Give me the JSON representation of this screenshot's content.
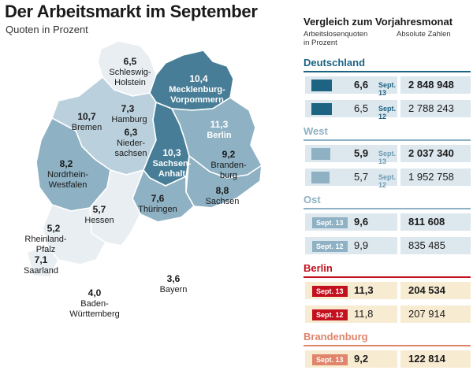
{
  "header": {
    "title": "Der Arbeitsmarkt im September",
    "subtitle": "Quoten in Prozent"
  },
  "chart_data": [
    {
      "type": "map",
      "regions": [
        {
          "id": "sh",
          "name": "Schleswig-Holstein",
          "label_lines": [
            "Schleswig-",
            "Holstein"
          ],
          "value": "6,5",
          "color": "#e8eef2"
        },
        {
          "id": "mv",
          "name": "Mecklenburg-Vorpommern",
          "label_lines": [
            "Mecklenburg-",
            "Vorpommern"
          ],
          "value": "10,4",
          "color": "#477d96"
        },
        {
          "id": "hh",
          "name": "Hamburg",
          "label_lines": [
            "Hamburg"
          ],
          "value": "7,3",
          "color": "#e8eef2"
        },
        {
          "id": "hb",
          "name": "Bremen",
          "label_lines": [
            "Bremen"
          ],
          "value": "10,7",
          "color": "#e8eef2"
        },
        {
          "id": "ni",
          "name": "Niedersachsen",
          "label_lines": [
            "Nieder-",
            "sachsen"
          ],
          "value": "6,3",
          "color": "#bad0dc"
        },
        {
          "id": "st",
          "name": "Sachsen-Anhalt",
          "label_lines": [
            "Sachsen-",
            "Anhalt"
          ],
          "value": "10,3",
          "color": "#477d96"
        },
        {
          "id": "be",
          "name": "Berlin",
          "label_lines": [
            "Berlin"
          ],
          "value": "11,3",
          "color": "#477d96"
        },
        {
          "id": "bb",
          "name": "Brandenburg",
          "label_lines": [
            "Branden-",
            "burg"
          ],
          "value": "9,2",
          "color": "#8eb1c3"
        },
        {
          "id": "nw",
          "name": "Nordrhein-Westfalen",
          "label_lines": [
            "Nordrhein-",
            "Westfalen"
          ],
          "value": "8,2",
          "color": "#8eb1c3"
        },
        {
          "id": "sn",
          "name": "Sachsen",
          "label_lines": [
            "Sachsen"
          ],
          "value": "8,8",
          "color": "#8eb1c3"
        },
        {
          "id": "th",
          "name": "Thüringen",
          "label_lines": [
            "Thüringen"
          ],
          "value": "7,6",
          "color": "#8eb1c3"
        },
        {
          "id": "he",
          "name": "Hessen",
          "label_lines": [
            "Hessen"
          ],
          "value": "5,7",
          "color": "#e8eef2"
        },
        {
          "id": "rp",
          "name": "Rheinland-Pfalz",
          "label_lines": [
            "Rheinland-",
            "Pfalz"
          ],
          "value": "5,2",
          "color": "#e8eef2"
        },
        {
          "id": "sl",
          "name": "Saarland",
          "label_lines": [
            "Saarland"
          ],
          "value": "7,1",
          "color": "#e8eef2"
        },
        {
          "id": "bw",
          "name": "Baden-Württemberg",
          "label_lines": [
            "Baden-",
            "Württemberg"
          ],
          "value": "4,0",
          "color": "#ffffff"
        },
        {
          "id": "by",
          "name": "Bayern",
          "label_lines": [
            "Bayern"
          ],
          "value": "3,6",
          "color": "#ffffff"
        }
      ]
    },
    {
      "type": "table",
      "title": "Vergleich zum Vorjahresmonat",
      "headers": [
        "Arbeitslosenquoten in Prozent",
        "Absolute Zahlen"
      ],
      "headers_left_lines": [
        "Arbeitslosenquoten",
        "in Prozent"
      ],
      "groups": [
        {
          "name": "Deutschland",
          "color": "#1d6382",
          "bg": "#ffffff",
          "rows": [
            {
              "period": "Sept. 13",
              "rate": 6.6,
              "rate_text": "6,6",
              "absolute": "2 848 948",
              "bold": true
            },
            {
              "period": "Sept. 12",
              "rate": 6.5,
              "rate_text": "6,5",
              "absolute": "2 788 243",
              "bold": false
            }
          ]
        },
        {
          "name": "West",
          "color": "#8eb1c3",
          "bg": "#ffffff",
          "rows": [
            {
              "period": "Sept. 13",
              "rate": 5.9,
              "rate_text": "5,9",
              "absolute": "2 037 340",
              "bold": true
            },
            {
              "period": "Sept. 12",
              "rate": 5.7,
              "rate_text": "5,7",
              "absolute": "1 952 758",
              "bold": false
            }
          ]
        },
        {
          "name": "Ost",
          "color": "#8eb1c3",
          "bg": "#dde7ee",
          "rows": [
            {
              "period": "Sept. 13",
              "rate": 9.6,
              "rate_text": "9,6",
              "absolute": "811 608",
              "bold": true
            },
            {
              "period": "Sept. 12",
              "rate": 9.9,
              "rate_text": "9,9",
              "absolute": "835 485",
              "bold": false
            }
          ]
        },
        {
          "name": "Berlin",
          "color": "#c3101e",
          "bg": "#f7ecd2",
          "rows": [
            {
              "period": "Sept. 13",
              "rate": 11.3,
              "rate_text": "11,3",
              "absolute": "204 534",
              "bold": true
            },
            {
              "period": "Sept. 12",
              "rate": 11.8,
              "rate_text": "11,8",
              "absolute": "207 914",
              "bold": false
            }
          ]
        },
        {
          "name": "Brandenburg",
          "color": "#e0846a",
          "bg": "#f7ecd2",
          "rows": [
            {
              "period": "Sept. 13",
              "rate": 9.2,
              "rate_text": "9,2",
              "absolute": "122 814",
              "bold": true
            }
          ]
        }
      ]
    }
  ]
}
